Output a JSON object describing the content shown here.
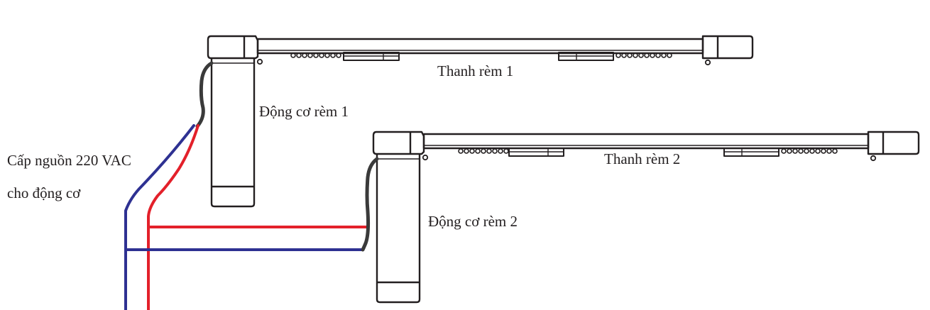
{
  "labels": {
    "rail_1": "Thanh rèm 1",
    "motor_1": "Động cơ rèm 1",
    "rail_2": "Thanh rèm 2",
    "motor_2": "Động cơ rèm 2",
    "power_line1": "Cấp nguồn 220 VAC",
    "power_line2": "cho động cơ"
  },
  "colors": {
    "outline": "#231f20",
    "live_wire": "#e3202a",
    "neutral_wire": "#2e3192",
    "motor_cable": "#3a3a3a"
  }
}
